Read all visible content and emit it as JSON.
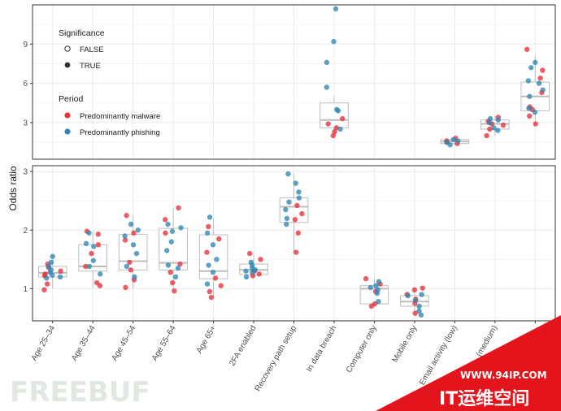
{
  "chart_data": {
    "type": "box-scatter",
    "ylabel": "Odds ratio",
    "categories": [
      "Age 25–34",
      "Age 35–44",
      "Age 45–54",
      "Age 55–64",
      "Age 65+",
      "2FA enabled",
      "Recovery path setup",
      "In data breach",
      "Computer only",
      "Mobile only",
      "Email activity (low)",
      "(medium)",
      ""
    ],
    "panels": [
      {
        "id": "top",
        "ylim": [
          0.2,
          12.0
        ],
        "yticks": [
          3,
          6,
          9
        ],
        "boxes": [
          {
            "cat": 7,
            "q1": 2.6,
            "median": 3.2,
            "q3": 4.5,
            "wlo": 2.0,
            "whi": 5.0
          },
          {
            "cat": 10,
            "q1": 1.4,
            "median": 1.55,
            "q3": 1.7,
            "wlo": 1.3,
            "whi": 1.8
          },
          {
            "cat": 11,
            "q1": 2.5,
            "median": 2.9,
            "q3": 3.2,
            "wlo": 2.0,
            "whi": 3.5
          },
          {
            "cat": 12,
            "q1": 3.9,
            "median": 5.0,
            "q3": 6.1,
            "wlo": 2.9,
            "whi": 8.1
          }
        ],
        "points": {
          "7": {
            "malware": [
              2.0,
              2.3,
              2.6,
              2.9,
              3.3
            ],
            "phishing": [
              2.5,
              3.9,
              4.0,
              5.7,
              7.6,
              9.2,
              11.7
            ]
          },
          "10": {
            "malware": [
              1.4,
              1.6,
              1.8,
              1.5
            ],
            "phishing": [
              1.5,
              1.7,
              1.6,
              1.3
            ]
          },
          "11": {
            "malware": [
              2.0,
              2.5,
              2.9,
              3.4,
              3.1,
              2.8
            ],
            "phishing": [
              2.6,
              3.0,
              3.2,
              2.4,
              3.3
            ]
          },
          "12": {
            "malware": [
              2.9,
              3.5,
              4.0,
              4.2,
              5.3,
              6.4,
              7.0,
              8.6
            ],
            "phishing": [
              3.8,
              4.1,
              5.0,
              5.5,
              6.0,
              6.2,
              7.2,
              7.6
            ]
          }
        }
      },
      {
        "id": "bottom",
        "ylim": [
          0.45,
          3.1
        ],
        "yticks": [
          1,
          2,
          3
        ],
        "boxes": [
          {
            "cat": 0,
            "q1": 1.2,
            "median": 1.27,
            "q3": 1.38,
            "wlo": 1.0,
            "whi": 1.55
          },
          {
            "cat": 1,
            "q1": 1.3,
            "median": 1.38,
            "q3": 1.75,
            "wlo": 1.02,
            "whi": 1.98
          },
          {
            "cat": 2,
            "q1": 1.32,
            "median": 1.47,
            "q3": 1.93,
            "wlo": 1.0,
            "whi": 2.25
          },
          {
            "cat": 3,
            "q1": 1.32,
            "median": 1.44,
            "q3": 2.03,
            "wlo": 0.96,
            "whi": 2.38
          },
          {
            "cat": 4,
            "q1": 1.17,
            "median": 1.3,
            "q3": 1.92,
            "wlo": 0.85,
            "whi": 2.2
          },
          {
            "cat": 5,
            "q1": 1.24,
            "median": 1.32,
            "q3": 1.42,
            "wlo": 1.2,
            "whi": 1.6
          },
          {
            "cat": 6,
            "q1": 2.13,
            "median": 2.4,
            "q3": 2.55,
            "wlo": 1.62,
            "whi": 2.96
          },
          {
            "cat": 8,
            "q1": 0.74,
            "median": 1.0,
            "q3": 1.05,
            "wlo": 0.7,
            "whi": 1.17
          },
          {
            "cat": 9,
            "q1": 0.7,
            "median": 0.78,
            "q3": 0.88,
            "wlo": 0.55,
            "whi": 1.01
          }
        ],
        "points": {
          "0": {
            "malware": [
              0.98,
              1.08,
              1.22,
              1.36,
              1.42,
              1.25,
              1.3
            ],
            "phishing": [
              1.18,
              1.23,
              1.28,
              1.32,
              1.38,
              1.45,
              1.55,
              1.2
            ]
          },
          "1": {
            "malware": [
              1.05,
              1.1,
              1.38,
              1.6,
              1.75,
              1.98,
              1.93
            ],
            "phishing": [
              1.25,
              1.38,
              1.48,
              1.72,
              1.77,
              1.95
            ]
          },
          "2": {
            "malware": [
              1.02,
              1.15,
              1.32,
              1.45,
              1.95,
              2.25,
              1.83
            ],
            "phishing": [
              1.2,
              1.38,
              1.6,
              1.75,
              1.9,
              2.0,
              2.1
            ]
          },
          "3": {
            "malware": [
              0.96,
              1.1,
              1.28,
              1.42,
              1.95,
              2.38,
              2.18
            ],
            "phishing": [
              1.2,
              1.4,
              1.65,
              1.8,
              1.98,
              2.1,
              2.04,
              1.35
            ]
          },
          "4": {
            "malware": [
              0.85,
              0.95,
              1.05,
              1.18,
              1.62,
              2.06,
              1.85
            ],
            "phishing": [
              1.08,
              1.28,
              1.5,
              1.75,
              1.95,
              2.22,
              1.4
            ]
          },
          "5": {
            "malware": [
              1.22,
              1.25,
              1.3,
              1.5,
              1.6
            ],
            "phishing": [
              1.2,
              1.28,
              1.32,
              1.35,
              1.4,
              1.45,
              1.3
            ]
          },
          "6": {
            "malware": [
              1.62,
              1.95,
              2.18,
              2.42,
              2.28
            ],
            "phishing": [
              2.1,
              2.2,
              2.35,
              2.48,
              2.55,
              2.65,
              2.8,
              2.96
            ]
          },
          "8": {
            "malware": [
              0.7,
              0.74,
              0.95,
              1.08,
              1.17
            ],
            "phishing": [
              0.78,
              0.92,
              0.98,
              1.02,
              1.05,
              1.12
            ]
          },
          "9": {
            "malware": [
              0.58,
              0.75,
              0.82,
              0.9,
              0.98,
              1.01
            ],
            "phishing": [
              0.55,
              0.62,
              0.7,
              0.8,
              0.88,
              0.9
            ]
          }
        }
      }
    ],
    "legend": {
      "significance_title": "Significance",
      "significance": [
        "FALSE",
        "TRUE"
      ],
      "period_title": "Period",
      "period": [
        "Predominantly malware",
        "Predominantly phishing"
      ]
    },
    "colors": {
      "malware": "#e8303a",
      "phishing": "#2e86b4",
      "box": "#bdbdbd",
      "grid": "#ebebeb",
      "frame": "#333333"
    },
    "grid": true
  },
  "watermark": {
    "left_text": "FREEBUF",
    "url": "WWW.94IP.COM",
    "cn": "IT运维空间"
  }
}
